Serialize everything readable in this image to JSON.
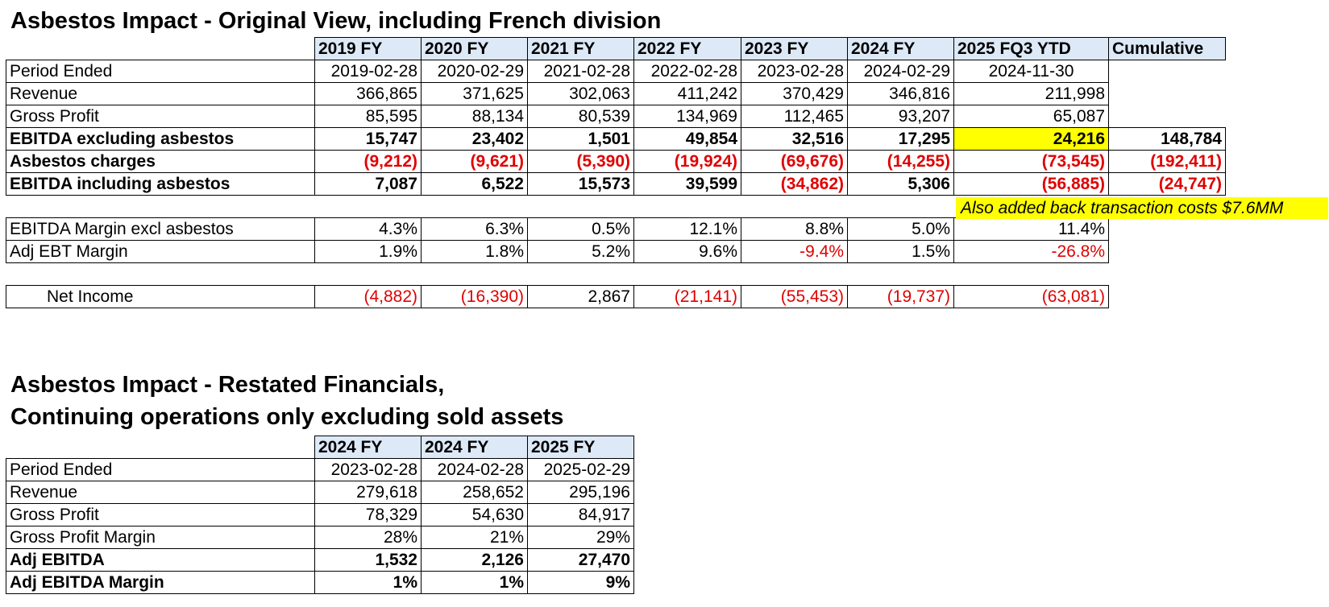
{
  "table1": {
    "title": "Asbestos Impact - Original View, including French division",
    "headers": [
      "2019 FY",
      "2020 FY",
      "2021 FY",
      "2022 FY",
      "2023 FY",
      "2024 FY",
      "2025 FQ3 YTD",
      "Cumulative"
    ],
    "period_label": "Period Ended",
    "periods": [
      "2019-02-28",
      "2020-02-29",
      "2021-02-28",
      "2022-02-28",
      "2023-02-28",
      "2024-02-29",
      "2024-11-30"
    ],
    "revenue_label": "Revenue",
    "revenue": [
      "366,865",
      "371,625",
      "302,063",
      "411,242",
      "370,429",
      "346,816",
      "211,998"
    ],
    "gross_profit_label": "Gross Profit",
    "gross_profit": [
      "85,595",
      "88,134",
      "80,539",
      "134,969",
      "112,465",
      "93,207",
      "65,087"
    ],
    "ebitda_excl_label": "EBITDA excluding asbestos",
    "ebitda_excl": [
      "15,747",
      "23,402",
      "1,501",
      "49,854",
      "32,516",
      "17,295",
      "24,216",
      "148,784"
    ],
    "asbestos_label": "Asbestos charges",
    "asbestos": [
      "(9,212)",
      "(9,621)",
      "(5,390)",
      "(19,924)",
      "(69,676)",
      "(14,255)",
      "(73,545)",
      "(192,411)"
    ],
    "ebitda_incl_label": "EBITDA including asbestos",
    "ebitda_incl": [
      "7,087",
      "6,522",
      "15,573",
      "39,599",
      "(34,862)",
      "5,306",
      "(56,885)",
      "(24,747)"
    ],
    "note": "Also added back transaction costs $7.6MM",
    "margin_label": "EBITDA Margin excl asbestos",
    "margin": [
      "4.3%",
      "6.3%",
      "0.5%",
      "12.1%",
      "8.8%",
      "5.0%",
      "11.4%"
    ],
    "ebt_label": "Adj EBT Margin",
    "ebt": [
      "1.9%",
      "1.8%",
      "5.2%",
      "9.6%",
      "-9.4%",
      "1.5%",
      "-26.8%"
    ],
    "net_income_label": "Net Income",
    "net_income": [
      "(4,882)",
      "(16,390)",
      "2,867",
      "(21,141)",
      "(55,453)",
      "(19,737)",
      "(63,081)"
    ]
  },
  "table2": {
    "title_line1": "Asbestos Impact - Restated Financials,",
    "title_line2": "Continuing operations only excluding sold assets",
    "headers": [
      "2024 FY",
      "2024 FY",
      "2025 FY"
    ],
    "period_label": "Period Ended",
    "periods": [
      "2023-02-28",
      "2024-02-28",
      "2025-02-29"
    ],
    "revenue_label": "Revenue",
    "revenue": [
      "279,618",
      "258,652",
      "295,196"
    ],
    "gross_profit_label": "Gross Profit",
    "gross_profit": [
      "78,329",
      "54,630",
      "84,917"
    ],
    "gpm_label": "Gross Profit Margin",
    "gpm": [
      "28%",
      "21%",
      "29%"
    ],
    "adj_ebitda_label": "Adj EBITDA",
    "adj_ebitda": [
      "1,532",
      "2,126",
      "27,470"
    ],
    "adj_ebitda_margin_label": "Adj EBITDA Margin",
    "adj_ebitda_margin": [
      "1%",
      "1%",
      "9%"
    ]
  },
  "colors": {
    "header_fill": "#dde9f6",
    "negative": "#e00000",
    "highlight": "#ffff00"
  }
}
